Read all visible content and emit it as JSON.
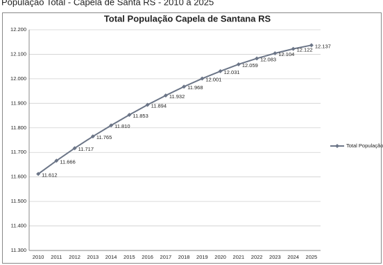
{
  "heading": "População Total - Capela de Santa RS - 2010 a 2025",
  "chart_data": {
    "type": "line",
    "title": "Total População Capela de Santana RS",
    "categories": [
      "2010",
      "2011",
      "2012",
      "2013",
      "2014",
      "2015",
      "2016",
      "2017",
      "2018",
      "2019",
      "2020",
      "2021",
      "2022",
      "2023",
      "2024",
      "2025"
    ],
    "series": [
      {
        "name": "Total População",
        "color": "#6b7587",
        "values": [
          11612,
          11666,
          11717,
          11765,
          11810,
          11853,
          11894,
          11932,
          11968,
          12001,
          12031,
          12059,
          12083,
          12104,
          12122,
          12137
        ],
        "value_labels": [
          "11.612",
          "11.666",
          "11.717",
          "11.765",
          "11.810",
          "11.853",
          "11.894",
          "11.932",
          "11.968",
          "12.001",
          "12.031",
          "12.059",
          "12.083",
          "12.104",
          "12.122",
          "12.137"
        ]
      }
    ],
    "ylim": [
      11300,
      12200
    ],
    "yticks": [
      {
        "value": 11300,
        "label": "11.300"
      },
      {
        "value": 11400,
        "label": "11.400"
      },
      {
        "value": 11500,
        "label": "11.500"
      },
      {
        "value": 11600,
        "label": "11.600"
      },
      {
        "value": 11700,
        "label": "11.700"
      },
      {
        "value": 11800,
        "label": "11.800"
      },
      {
        "value": 11900,
        "label": "11.900"
      },
      {
        "value": 12000,
        "label": "12.000"
      },
      {
        "value": 12100,
        "label": "12.100"
      },
      {
        "value": 12200,
        "label": "12.200"
      }
    ],
    "grid": true,
    "legend": "right"
  }
}
